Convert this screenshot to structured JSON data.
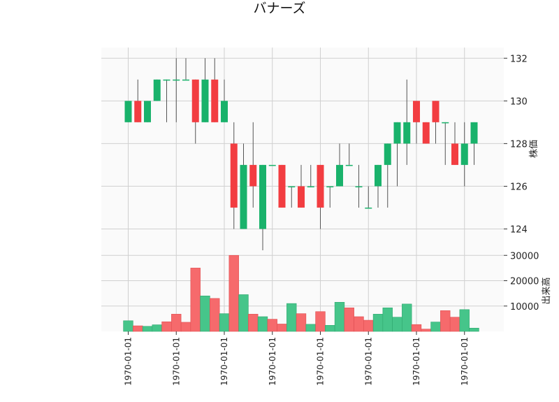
{
  "title": "バナーズ",
  "chart_data": [
    {
      "type": "candlestick",
      "name": "price-panel",
      "ylabel": "株価",
      "ylim": [
        123,
        132.5
      ],
      "yticks": [
        124,
        126,
        128,
        130,
        132
      ],
      "grid": true,
      "up_color": "#19b26b",
      "down_color": "#f23d41",
      "ohlc": [
        {
          "o": 129,
          "h": 130,
          "l": 129,
          "c": 130
        },
        {
          "o": 130,
          "h": 131,
          "l": 129,
          "c": 129
        },
        {
          "o": 129,
          "h": 130,
          "l": 129,
          "c": 130
        },
        {
          "o": 130,
          "h": 131,
          "l": 130,
          "c": 131
        },
        {
          "o": 131,
          "h": 131,
          "l": 129,
          "c": 131
        },
        {
          "o": 131,
          "h": 132,
          "l": 129,
          "c": 131
        },
        {
          "o": 131,
          "h": 132,
          "l": 131,
          "c": 131
        },
        {
          "o": 131,
          "h": 131,
          "l": 128,
          "c": 129
        },
        {
          "o": 129,
          "h": 132,
          "l": 129,
          "c": 131
        },
        {
          "o": 131,
          "h": 132,
          "l": 129,
          "c": 129
        },
        {
          "o": 129,
          "h": 131,
          "l": 129,
          "c": 130
        },
        {
          "o": 128,
          "h": 129,
          "l": 124,
          "c": 125
        },
        {
          "o": 124,
          "h": 128,
          "l": 124,
          "c": 127
        },
        {
          "o": 127,
          "h": 129,
          "l": 125,
          "c": 126
        },
        {
          "o": 124,
          "h": 127,
          "l": 123,
          "c": 127
        },
        {
          "o": 127,
          "h": 127,
          "l": 127,
          "c": 127
        },
        {
          "o": 127,
          "h": 127,
          "l": 125,
          "c": 125
        },
        {
          "o": 126,
          "h": 126,
          "l": 125,
          "c": 126
        },
        {
          "o": 126,
          "h": 127,
          "l": 125,
          "c": 125
        },
        {
          "o": 126,
          "h": 127,
          "l": 126,
          "c": 126
        },
        {
          "o": 127,
          "h": 127,
          "l": 124,
          "c": 125
        },
        {
          "o": 126,
          "h": 126,
          "l": 125,
          "c": 126
        },
        {
          "o": 126,
          "h": 128,
          "l": 126,
          "c": 127
        },
        {
          "o": 127,
          "h": 128,
          "l": 127,
          "c": 127
        },
        {
          "o": 126,
          "h": 127,
          "l": 125,
          "c": 126
        },
        {
          "o": 125,
          "h": 126,
          "l": 125,
          "c": 125
        },
        {
          "o": 126,
          "h": 127,
          "l": 125,
          "c": 127
        },
        {
          "o": 127,
          "h": 128,
          "l": 125,
          "c": 128
        },
        {
          "o": 128,
          "h": 129,
          "l": 126,
          "c": 129
        },
        {
          "o": 128,
          "h": 131,
          "l": 127,
          "c": 129
        },
        {
          "o": 130,
          "h": 130,
          "l": 128,
          "c": 129
        },
        {
          "o": 129,
          "h": 129,
          "l": 128,
          "c": 128
        },
        {
          "o": 130,
          "h": 130,
          "l": 128,
          "c": 129
        },
        {
          "o": 129,
          "h": 129,
          "l": 127,
          "c": 129
        },
        {
          "o": 128,
          "h": 129,
          "l": 127,
          "c": 127
        },
        {
          "o": 127,
          "h": 129,
          "l": 126,
          "c": 128
        },
        {
          "o": 128,
          "h": 129,
          "l": 127,
          "c": 129
        }
      ]
    },
    {
      "type": "bar",
      "name": "volume-panel",
      "ylabel": "出来高",
      "ylim": [
        0,
        32000
      ],
      "yticks": [
        10000,
        20000,
        30000
      ],
      "yticklabels": [
        "10000",
        "20000",
        "30000"
      ],
      "grid": true,
      "up_color": "#46c58a",
      "down_color": "#f66a6c",
      "values": [
        4200,
        2200,
        2000,
        2600,
        3800,
        6800,
        3600,
        25000,
        14000,
        13000,
        7000,
        30000,
        14500,
        6800,
        5800,
        4800,
        2900,
        11000,
        7000,
        2800,
        7800,
        2400,
        11500,
        9300,
        5800,
        4400,
        6800,
        9300,
        5600,
        10800,
        2700,
        900,
        3700,
        8200,
        5600,
        8600,
        1300
      ],
      "directions": [
        "up",
        "down",
        "up",
        "up",
        "down",
        "down",
        "down",
        "down",
        "up",
        "down",
        "up",
        "down",
        "up",
        "down",
        "up",
        "down",
        "down",
        "up",
        "down",
        "up",
        "down",
        "up",
        "up",
        "down",
        "down",
        "down",
        "up",
        "up",
        "up",
        "up",
        "down",
        "down",
        "up",
        "down",
        "down",
        "up",
        "up"
      ]
    }
  ],
  "x_tick_labels": [
    "1970-01-01",
    "1970-01-01",
    "1970-01-01",
    "1970-01-01",
    "1970-01-01",
    "1970-01-01",
    "1970-01-01",
    "1970-01-01"
  ],
  "x_tick_bar_index": [
    0,
    5,
    10,
    15,
    20,
    25,
    30,
    35
  ]
}
